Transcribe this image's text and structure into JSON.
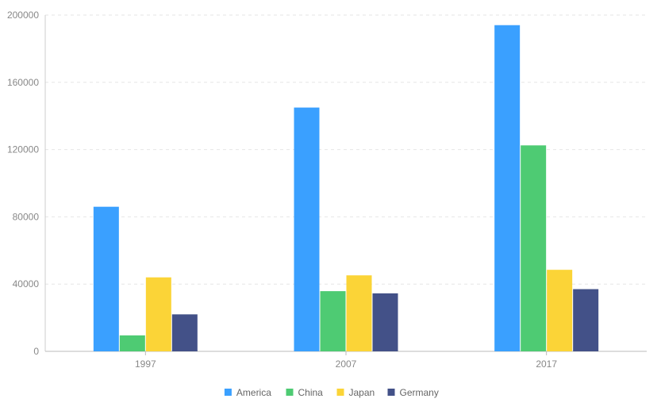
{
  "chart_data": {
    "type": "bar",
    "title": "",
    "xlabel": "",
    "ylabel": "",
    "categories": [
      "1997",
      "2007",
      "2017"
    ],
    "series": [
      {
        "name": "America",
        "color": "#3aa0ff",
        "values": [
          86000,
          145000,
          194000
        ]
      },
      {
        "name": "China",
        "color": "#4ecb73",
        "values": [
          9500,
          35800,
          122500
        ]
      },
      {
        "name": "Japan",
        "color": "#fbd437",
        "values": [
          44000,
          45200,
          48500
        ]
      },
      {
        "name": "Germany",
        "color": "#435188",
        "values": [
          22000,
          34500,
          37000
        ]
      }
    ],
    "ylim": [
      0,
      200000
    ],
    "yticks": [
      "0",
      "40000",
      "80000",
      "120000",
      "160000",
      "200000"
    ],
    "ytick_values": [
      0,
      40000,
      80000,
      120000,
      160000,
      200000
    ],
    "grid": true,
    "legend_position": "bottom-center"
  }
}
